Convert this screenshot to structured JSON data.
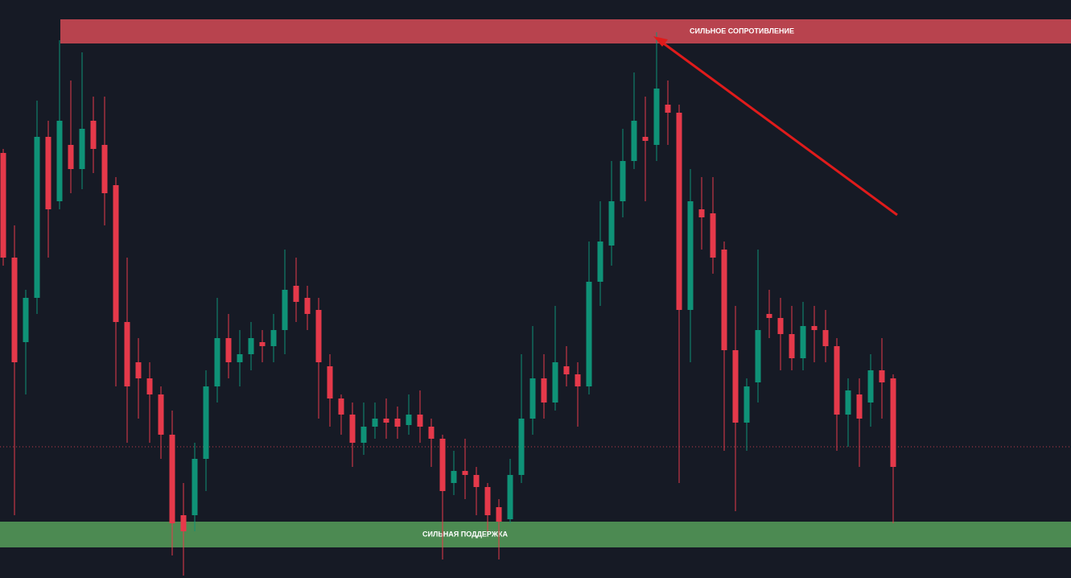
{
  "chart_data": {
    "type": "candlestick",
    "ylim": [
      0,
      718
    ],
    "up_color": "#0f9277",
    "down_color": "#e5394a",
    "open": [
      528,
      398,
      293,
      348,
      548,
      468,
      538,
      508,
      568,
      538,
      488,
      318,
      268,
      248,
      228,
      178,
      78,
      78,
      148,
      238,
      298,
      268,
      278,
      293,
      288,
      308,
      363,
      348,
      333,
      263,
      223,
      203,
      168,
      188,
      198,
      198,
      190,
      203,
      188,
      173,
      118,
      133,
      128,
      113,
      88,
      73,
      128,
      198,
      248,
      218,
      263,
      253,
      238,
      368,
      413,
      468,
      518,
      548,
      538,
      588,
      578,
      333,
      458,
      453,
      408,
      283,
      193,
      243,
      328,
      323,
      303,
      273,
      313,
      308,
      288,
      203,
      228,
      218,
      258,
      248
    ],
    "high": [
      533,
      438,
      358,
      593,
      568,
      668,
      618,
      653,
      598,
      598,
      498,
      398,
      298,
      268,
      238,
      208,
      118,
      168,
      258,
      348,
      328,
      308,
      318,
      308,
      328,
      408,
      398,
      363,
      348,
      278,
      228,
      218,
      218,
      218,
      223,
      213,
      228,
      233,
      198,
      178,
      158,
      173,
      138,
      118,
      98,
      148,
      278,
      313,
      278,
      338,
      288,
      268,
      418,
      468,
      518,
      558,
      628,
      598,
      678,
      618,
      588,
      508,
      498,
      498,
      418,
      338,
      248,
      408,
      358,
      348,
      338,
      343,
      338,
      333,
      298,
      248,
      248,
      278,
      298,
      253
    ],
    "low": [
      388,
      78,
      228,
      328,
      398,
      458,
      478,
      483,
      503,
      438,
      238,
      168,
      198,
      168,
      148,
      28,
      3,
      58,
      108,
      218,
      248,
      238,
      258,
      268,
      268,
      278,
      318,
      308,
      198,
      188,
      178,
      138,
      153,
      173,
      173,
      173,
      178,
      168,
      138,
      23,
      103,
      98,
      78,
      58,
      23,
      68,
      118,
      178,
      198,
      208,
      238,
      188,
      228,
      338,
      388,
      448,
      508,
      468,
      518,
      538,
      118,
      268,
      408,
      378,
      158,
      83,
      158,
      218,
      298,
      258,
      258,
      258,
      268,
      268,
      158,
      163,
      138,
      188,
      198,
      68
    ],
    "close": [
      398,
      268,
      348,
      548,
      458,
      568,
      508,
      558,
      533,
      478,
      318,
      238,
      248,
      228,
      178,
      68,
      58,
      148,
      238,
      298,
      268,
      278,
      298,
      288,
      308,
      358,
      343,
      328,
      268,
      223,
      203,
      168,
      188,
      198,
      193,
      188,
      203,
      188,
      173,
      108,
      133,
      128,
      113,
      78,
      70,
      128,
      198,
      248,
      218,
      268,
      253,
      238,
      368,
      418,
      468,
      518,
      568,
      543,
      608,
      578,
      333,
      468,
      448,
      398,
      283,
      193,
      238,
      308,
      323,
      303,
      273,
      313,
      308,
      288,
      203,
      233,
      198,
      258,
      243,
      138
    ],
    "zones": [
      {
        "label": "СИЛЬНОЕ СОПРОТИВЛЕНИЕ",
        "range": [
          664,
          694
        ],
        "color": "#b8434e"
      },
      {
        "label": "СИЛЬНАЯ ПОДДЕРЖКА",
        "range": [
          38,
          70
        ],
        "color": "#4c8a52"
      }
    ],
    "level": {
      "value": 163,
      "color": "#c0394a"
    }
  }
}
